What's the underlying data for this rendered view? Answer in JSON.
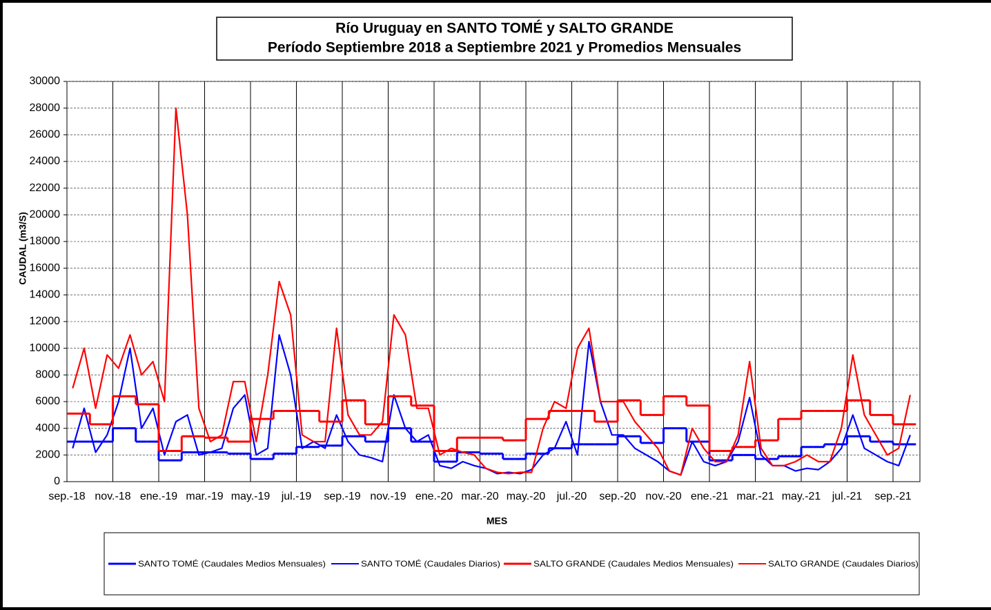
{
  "chart_data": {
    "type": "line",
    "title": [
      "Río Uruguay en SANTO TOMÉ y SALTO GRANDE",
      "Período  Septiembre  2018  a  Septiembre  2021  y  Promedios  Mensuales"
    ],
    "x_label": "MES",
    "y_label": "CAUDAL  (m3/S)",
    "categories": [
      "sep.-18",
      null,
      null,
      null,
      "nov.-18",
      null,
      null,
      null,
      "ene.-19",
      null,
      null,
      null,
      "mar.-19",
      null,
      null,
      null,
      "may.-19",
      null,
      null,
      null,
      "jul.-19",
      null,
      null,
      null,
      "sep.-19",
      null,
      null,
      null,
      "nov.-19",
      null,
      null,
      null,
      "ene.-20",
      null,
      null,
      null,
      "mar.-20",
      null,
      null,
      null,
      "may.-20",
      null,
      null,
      null,
      "jul.-20",
      null,
      null,
      null,
      "sep.-20",
      null,
      null,
      null,
      "nov.-20",
      null,
      null,
      null,
      "ene.-21",
      null,
      null,
      null,
      "mar.-21",
      null,
      null,
      null,
      "may.-21",
      null,
      null,
      null,
      "jul.-21",
      null,
      null,
      null,
      "sep.-21",
      null
    ],
    "ylim": [
      0,
      30000
    ],
    "yticks": [
      0,
      2000,
      4000,
      6000,
      8000,
      10000,
      12000,
      14000,
      16000,
      18000,
      20000,
      22000,
      24000,
      26000,
      28000,
      30000
    ],
    "grid": true,
    "series": [
      {
        "name": "SANTO TOMÉ (Caudales Medios Mensuales)",
        "color": "#0000ff",
        "step": true,
        "values": [
          3000,
          3000,
          3000,
          3000,
          4000,
          4000,
          3000,
          3000,
          1600,
          1600,
          2200,
          2200,
          2200,
          2200,
          2100,
          2100,
          1700,
          1700,
          2100,
          2100,
          2600,
          2600,
          2700,
          2700,
          3400,
          3400,
          3000,
          3000,
          4000,
          4000,
          3000,
          3000,
          1500,
          1500,
          2200,
          2200,
          2100,
          2100,
          1700,
          1700,
          2100,
          2100,
          2500,
          2500,
          2800,
          2800,
          2800,
          2800,
          3400,
          3400,
          2900,
          2900,
          4000,
          4000,
          3000,
          3000,
          1600,
          1600,
          2000,
          2000,
          1700,
          1700,
          1900,
          1900,
          2600,
          2600,
          2800,
          2800,
          3400,
          3400,
          3000,
          3000,
          2800,
          2800
        ]
      },
      {
        "name": "SANTO TOMÉ (Caudales Diarios)",
        "color": "#0000ff",
        "step": false,
        "values": [
          2500,
          5500,
          2200,
          3500,
          6000,
          10000,
          4000,
          5500,
          2000,
          4500,
          5000,
          2000,
          2200,
          2500,
          5500,
          6500,
          2000,
          2500,
          11000,
          8000,
          2500,
          3000,
          2500,
          5000,
          3000,
          2000,
          1800,
          1500,
          6500,
          4000,
          3000,
          3500,
          1200,
          1000,
          1500,
          1200,
          1000,
          600,
          700,
          600,
          900,
          2000,
          2500,
          4500,
          2000,
          10500,
          6000,
          3500,
          3500,
          2500,
          2000,
          1500,
          800,
          500,
          3000,
          1500,
          1200,
          1500,
          3000,
          6300,
          2000,
          1200,
          1200,
          800,
          1000,
          900,
          1500,
          2500,
          5000,
          2500,
          2000,
          1500,
          1200,
          3500
        ]
      },
      {
        "name": "SALTO GRANDE (Caudales Medios Mensuales)",
        "color": "#ff0000",
        "step": true,
        "values": [
          5100,
          5100,
          4300,
          4300,
          6400,
          6400,
          5800,
          5800,
          2300,
          2300,
          3400,
          3400,
          3300,
          3300,
          3000,
          3000,
          4700,
          4700,
          5300,
          5300,
          5300,
          5300,
          4500,
          4500,
          6100,
          6100,
          4300,
          4300,
          6400,
          6400,
          5700,
          5700,
          2300,
          2300,
          3300,
          3300,
          3300,
          3300,
          3100,
          3100,
          4700,
          4700,
          5300,
          5300,
          5300,
          5300,
          4500,
          4500,
          6100,
          6100,
          5000,
          5000,
          6400,
          6400,
          5700,
          5700,
          2300,
          2300,
          2600,
          2600,
          3100,
          3100,
          4700,
          4700,
          5300,
          5300,
          5300,
          5300,
          6100,
          6100,
          5000,
          5000,
          4300,
          4300
        ]
      },
      {
        "name": "SALTO GRANDE (Caudales Diarios)",
        "color": "#ff0000",
        "step": false,
        "values": [
          7000,
          10000,
          5500,
          9500,
          8500,
          11000,
          8000,
          9000,
          6000,
          28000,
          20000,
          5500,
          3000,
          3500,
          7500,
          7500,
          3000,
          8000,
          15000,
          12500,
          3500,
          3000,
          3000,
          11500,
          5000,
          3500,
          3500,
          4500,
          12500,
          11000,
          5500,
          5500,
          2000,
          2500,
          2200,
          2000,
          1000,
          700,
          600,
          700,
          700,
          4000,
          6000,
          5500,
          10000,
          11500,
          6000,
          6000,
          6000,
          4500,
          3500,
          2500,
          800,
          500,
          4000,
          2500,
          1500,
          1500,
          3500,
          9000,
          2500,
          1200,
          1200,
          1500,
          2000,
          1500,
          1500,
          4000,
          9500,
          5000,
          3500,
          2000,
          2500,
          6500
        ]
      }
    ]
  }
}
